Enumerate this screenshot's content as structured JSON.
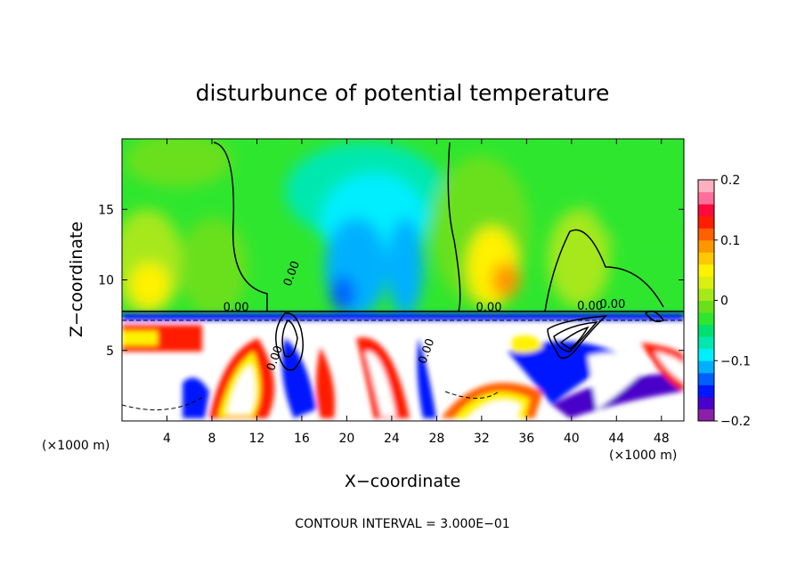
{
  "chart_data": {
    "type": "heatmap",
    "title": "disturbunce of potential temperature",
    "xlabel": "X−coordinate",
    "ylabel": "Z−coordinate",
    "x_unit": "(×1000 m)",
    "y_unit": "(×1000 m)",
    "xlim": [
      0,
      50
    ],
    "ylim": [
      0,
      20
    ],
    "x_ticks": [
      4,
      8,
      12,
      16,
      20,
      24,
      28,
      32,
      36,
      40,
      44,
      48
    ],
    "y_ticks": [
      5,
      10,
      15
    ],
    "colorbar": {
      "range": [
        -0.2,
        0.2
      ],
      "tick_values": [
        0.2,
        0.1,
        0,
        -0.1,
        -0.2
      ],
      "tick_labels": [
        "0.2",
        "0.1",
        "0",
        "−0.1",
        "−0.2"
      ],
      "colors": [
        "#8b1fa8",
        "#4a00c8",
        "#0018ff",
        "#0060ff",
        "#00b0ff",
        "#00eeff",
        "#00e8b0",
        "#00e070",
        "#2fe62f",
        "#6ae01a",
        "#a6e81a",
        "#d9ef10",
        "#fff200",
        "#ffc800",
        "#ff9800",
        "#ff6000",
        "#ff1e00",
        "#ff0a3c",
        "#ff6e9a",
        "#ffb0c0"
      ]
    },
    "contour_labels": [
      "0.00",
      "0.00",
      "0.00",
      "0.00",
      "0.00",
      "0.00",
      "0.00"
    ],
    "contour_interval_text": "CONTOUR INTERVAL = 3.000E−01",
    "grid": false
  }
}
